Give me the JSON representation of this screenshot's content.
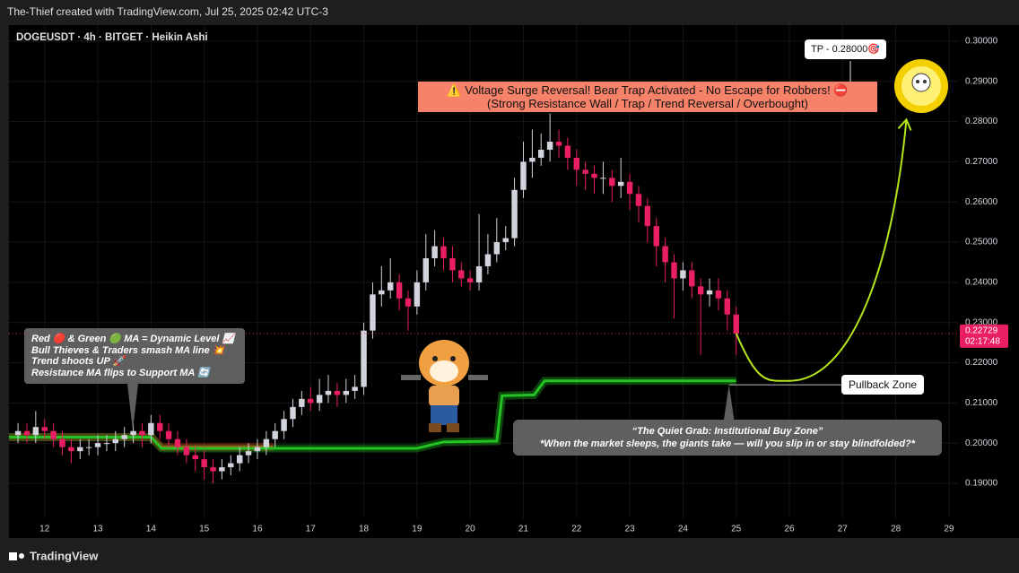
{
  "header": {
    "credit": "The-Thief created with TradingView.com, Jul 25, 2025 02:42 UTC-3",
    "symbol": "DOGEUSDT · 4h · BITGET · Heikin Ashi"
  },
  "footer": {
    "logo": "TradingView"
  },
  "chart_data": {
    "type": "candlestick",
    "x": [
      11.5,
      11.667,
      11.833,
      12,
      12.167,
      12.333,
      12.5,
      12.667,
      12.833,
      13,
      13.167,
      13.333,
      13.5,
      13.667,
      13.833,
      14,
      14.167,
      14.333,
      14.5,
      14.667,
      14.833,
      15,
      15.167,
      15.333,
      15.5,
      15.667,
      15.833,
      16,
      16.167,
      16.333,
      16.5,
      16.667,
      16.833,
      17,
      17.167,
      17.333,
      17.5,
      17.667,
      17.833,
      18,
      18.167,
      18.333,
      18.5,
      18.667,
      18.833,
      19,
      19.167,
      19.333,
      19.5,
      19.667,
      19.833,
      20,
      20.167,
      20.333,
      20.5,
      20.667,
      20.833,
      21,
      21.167,
      21.333,
      21.5,
      21.667,
      21.833,
      22,
      22.167,
      22.333,
      22.5,
      22.667,
      22.833,
      23,
      23.167,
      23.333,
      23.5,
      23.667,
      23.833,
      24,
      24.167,
      24.333,
      24.5,
      24.667,
      24.833,
      25
    ],
    "open": [
      0.202,
      0.203,
      0.202,
      0.204,
      0.203,
      0.201,
      0.199,
      0.198,
      0.199,
      0.199,
      0.2,
      0.2,
      0.201,
      0.202,
      0.203,
      0.202,
      0.205,
      0.203,
      0.201,
      0.199,
      0.197,
      0.196,
      0.194,
      0.193,
      0.194,
      0.195,
      0.197,
      0.198,
      0.199,
      0.201,
      0.203,
      0.206,
      0.209,
      0.211,
      0.21,
      0.212,
      0.213,
      0.212,
      0.213,
      0.214,
      0.228,
      0.237,
      0.238,
      0.24,
      0.236,
      0.234,
      0.24,
      0.246,
      0.249,
      0.246,
      0.243,
      0.241,
      0.24,
      0.244,
      0.247,
      0.25,
      0.251,
      0.263,
      0.27,
      0.271,
      0.273,
      0.275,
      0.274,
      0.271,
      0.268,
      0.267,
      0.266,
      0.266,
      0.264,
      0.265,
      0.262,
      0.259,
      0.254,
      0.249,
      0.245,
      0.241,
      0.243,
      0.239,
      0.237,
      0.238,
      0.236,
      0.232
    ],
    "high": [
      0.205,
      0.205,
      0.208,
      0.206,
      0.205,
      0.203,
      0.201,
      0.201,
      0.201,
      0.202,
      0.202,
      0.203,
      0.204,
      0.205,
      0.205,
      0.207,
      0.207,
      0.205,
      0.203,
      0.201,
      0.199,
      0.198,
      0.196,
      0.196,
      0.197,
      0.199,
      0.2,
      0.201,
      0.203,
      0.205,
      0.208,
      0.211,
      0.213,
      0.214,
      0.216,
      0.217,
      0.215,
      0.216,
      0.217,
      0.23,
      0.24,
      0.244,
      0.246,
      0.242,
      0.238,
      0.243,
      0.252,
      0.253,
      0.251,
      0.249,
      0.245,
      0.243,
      0.257,
      0.252,
      0.256,
      0.254,
      0.266,
      0.275,
      0.278,
      0.277,
      0.282,
      0.278,
      0.276,
      0.273,
      0.27,
      0.269,
      0.27,
      0.268,
      0.271,
      0.267,
      0.264,
      0.261,
      0.256,
      0.251,
      0.247,
      0.245,
      0.245,
      0.241,
      0.241,
      0.241,
      0.238,
      0.234
    ],
    "low": [
      0.2,
      0.2,
      0.2,
      0.201,
      0.199,
      0.197,
      0.195,
      0.196,
      0.197,
      0.197,
      0.198,
      0.198,
      0.199,
      0.2,
      0.199,
      0.2,
      0.201,
      0.199,
      0.197,
      0.195,
      0.193,
      0.191,
      0.19,
      0.191,
      0.192,
      0.193,
      0.195,
      0.196,
      0.197,
      0.199,
      0.201,
      0.204,
      0.207,
      0.208,
      0.208,
      0.21,
      0.209,
      0.21,
      0.211,
      0.212,
      0.226,
      0.234,
      0.236,
      0.233,
      0.228,
      0.232,
      0.238,
      0.244,
      0.243,
      0.24,
      0.239,
      0.238,
      0.238,
      0.242,
      0.245,
      0.248,
      0.249,
      0.261,
      0.266,
      0.269,
      0.27,
      0.271,
      0.268,
      0.264,
      0.263,
      0.262,
      0.262,
      0.26,
      0.261,
      0.258,
      0.255,
      0.25,
      0.244,
      0.24,
      0.231,
      0.238,
      0.236,
      0.222,
      0.234,
      0.233,
      0.228,
      0.222
    ],
    "close": [
      0.203,
      0.202,
      0.204,
      0.203,
      0.201,
      0.199,
      0.198,
      0.199,
      0.199,
      0.2,
      0.2,
      0.201,
      0.202,
      0.203,
      0.202,
      0.205,
      0.203,
      0.201,
      0.199,
      0.197,
      0.196,
      0.194,
      0.193,
      0.194,
      0.195,
      0.197,
      0.198,
      0.199,
      0.201,
      0.203,
      0.206,
      0.209,
      0.211,
      0.21,
      0.212,
      0.213,
      0.212,
      0.213,
      0.214,
      0.228,
      0.237,
      0.238,
      0.24,
      0.236,
      0.234,
      0.24,
      0.246,
      0.249,
      0.246,
      0.243,
      0.241,
      0.24,
      0.244,
      0.247,
      0.25,
      0.251,
      0.263,
      0.27,
      0.271,
      0.273,
      0.275,
      0.274,
      0.271,
      0.268,
      0.267,
      0.266,
      0.266,
      0.264,
      0.265,
      0.262,
      0.259,
      0.254,
      0.249,
      0.245,
      0.241,
      0.243,
      0.239,
      0.237,
      0.238,
      0.236,
      0.232,
      0.22729
    ],
    "up_color": "#d1d4dc",
    "down_color": "#e91e63",
    "countdown": "02:17:48",
    "ma_lines": [
      {
        "color": "#ff1a1a",
        "x": [
          11.33,
          14.0,
          14.2,
          16.3
        ],
        "values": [
          0.2015,
          0.2015,
          0.199,
          0.199
        ]
      },
      {
        "color": "#22c322",
        "x": [
          11.33,
          14.0,
          14.2,
          19.0,
          19.5,
          20.5,
          20.6,
          21.2,
          21.4,
          25.0
        ],
        "values": [
          0.2015,
          0.2015,
          0.1987,
          0.1987,
          0.2003,
          0.2005,
          0.2118,
          0.212,
          0.2155,
          0.2155
        ]
      }
    ],
    "projection": {
      "color": "#b5e61d",
      "x": [
        25.0,
        26.0,
        28.2
      ],
      "values": [
        0.2273,
        0.2155,
        0.2805
      ]
    },
    "pullback_level": 0.2145,
    "xlim": [
      11.33,
      29.17
    ],
    "ylim": [
      0.1813,
      0.304
    ],
    "xticks": [
      12,
      13,
      14,
      15,
      16,
      17,
      18,
      19,
      20,
      21,
      22,
      23,
      24,
      25,
      26,
      27,
      28,
      29
    ],
    "yticks": [
      {
        "value": 0.19,
        "label": "0.19000"
      },
      {
        "value": 0.2,
        "label": "0.20000"
      },
      {
        "value": 0.21,
        "label": "0.21000"
      },
      {
        "value": 0.22,
        "label": "0.22000"
      },
      {
        "value": 0.23,
        "label": "0.23000"
      },
      {
        "value": 0.24,
        "label": "0.24000"
      },
      {
        "value": 0.25,
        "label": "0.25000"
      },
      {
        "value": 0.26,
        "label": "0.26000"
      },
      {
        "value": 0.27,
        "label": "0.27000"
      },
      {
        "value": 0.28,
        "label": "0.28000"
      },
      {
        "value": 0.29,
        "label": "0.29000"
      },
      {
        "value": 0.3,
        "label": "0.30000"
      }
    ],
    "annotations": {
      "tp": "TP - 0.28000🎯",
      "warning_1": "⚠️ Voltage Surge Reversal! Bear Trap Activated - No Escape for Robbers! ⛔",
      "warning_2": "(Strong Resistance Wall / Trap / Trend Reversal / Overbought)",
      "legend_1": "Red 🔴 & Green 🟢 MA = Dynamic Level 📈",
      "legend_2": "Bull Thieves & Traders smash MA line 💥",
      "legend_3": "Trend shoots UP 🚀",
      "legend_4": "Resistance MA flips to Support MA 🔄",
      "pullback": "Pullback Zone",
      "zone_1": "“The Quiet Grab: Institutional Buy Zone”",
      "zone_2": "*When the market sleeps, the giants take — will you slip in or stay blindfolded?*"
    }
  }
}
